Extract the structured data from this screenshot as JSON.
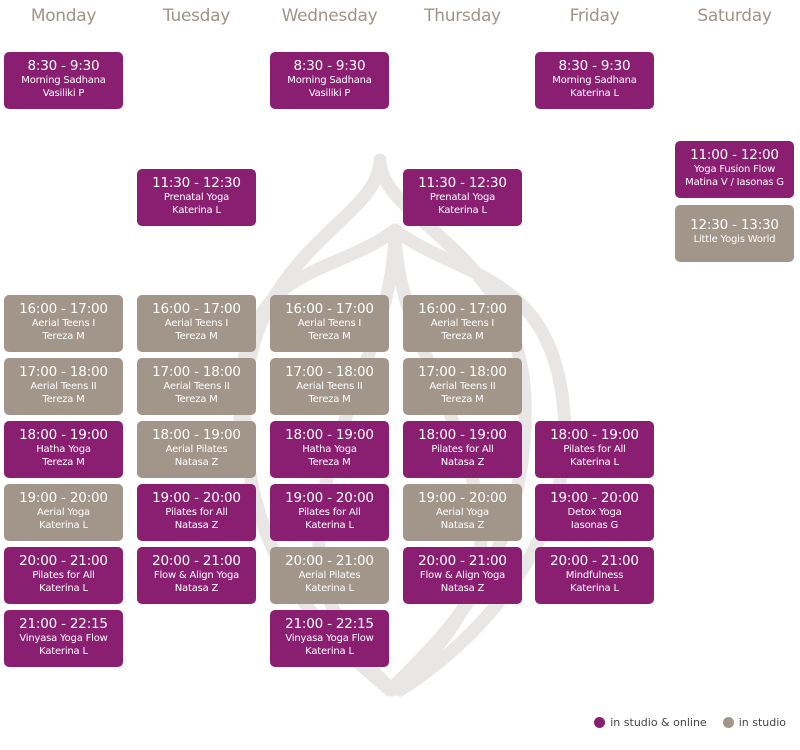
{
  "colors": {
    "online": "#8a1f72",
    "studio": "#a29589",
    "header": "#a09488"
  },
  "days": [
    "Monday",
    "Tuesday",
    "Wednesday",
    "Thursday",
    "Friday",
    "Saturday"
  ],
  "classes": [
    {
      "day": 0,
      "time": "8:30 - 9:30",
      "name": "Morning Sadhana",
      "instructor": "Vasiliki P",
      "type": "online"
    },
    {
      "day": 2,
      "time": "8:30 - 9:30",
      "name": "Morning Sadhana",
      "instructor": "Vasiliki P",
      "type": "online"
    },
    {
      "day": 4,
      "time": "8:30 - 9:30",
      "name": "Morning Sadhana",
      "instructor": "Katerina L",
      "type": "online"
    },
    {
      "day": 5,
      "time": "11:00 - 12:00",
      "name": "Yoga Fusion Flow",
      "instructor": "Matina V / Iasonas G",
      "type": "online"
    },
    {
      "day": 1,
      "time": "11:30 - 12:30",
      "name": "Prenatal Yoga",
      "instructor": "Katerina L",
      "type": "online"
    },
    {
      "day": 3,
      "time": "11:30 - 12:30",
      "name": "Prenatal Yoga",
      "instructor": "Katerina L",
      "type": "online"
    },
    {
      "day": 5,
      "time": "12:30 - 13:30",
      "name": "Little Yogis World",
      "instructor": "",
      "type": "studio"
    },
    {
      "day": 0,
      "time": "16:00 - 17:00",
      "name": "Aerial Teens I",
      "instructor": "Tereza M",
      "type": "studio"
    },
    {
      "day": 1,
      "time": "16:00 - 17:00",
      "name": "Aerial Teens I",
      "instructor": "Tereza M",
      "type": "studio"
    },
    {
      "day": 2,
      "time": "16:00 - 17:00",
      "name": "Aerial Teens I",
      "instructor": "Tereza M",
      "type": "studio"
    },
    {
      "day": 3,
      "time": "16:00 - 17:00",
      "name": "Aerial Teens I",
      "instructor": "Tereza M",
      "type": "studio"
    },
    {
      "day": 0,
      "time": "17:00 - 18:00",
      "name": "Aerial Teens II",
      "instructor": "Tereza M",
      "type": "studio"
    },
    {
      "day": 1,
      "time": "17:00 - 18:00",
      "name": "Aerial Teens II",
      "instructor": "Tereza M",
      "type": "studio"
    },
    {
      "day": 2,
      "time": "17:00 - 18:00",
      "name": "Aerial Teens II",
      "instructor": "Tereza M",
      "type": "studio"
    },
    {
      "day": 3,
      "time": "17:00 - 18:00",
      "name": "Aerial Teens II",
      "instructor": "Tereza M",
      "type": "studio"
    },
    {
      "day": 0,
      "time": "18:00 - 19:00",
      "name": "Hatha Yoga",
      "instructor": "Tereza M",
      "type": "online"
    },
    {
      "day": 1,
      "time": "18:00 - 19:00",
      "name": "Aerial Pilates",
      "instructor": "Natasa Z",
      "type": "studio"
    },
    {
      "day": 2,
      "time": "18:00 - 19:00",
      "name": "Hatha Yoga",
      "instructor": "Tereza M",
      "type": "online"
    },
    {
      "day": 3,
      "time": "18:00 - 19:00",
      "name": "Pilates for All",
      "instructor": "Natasa Z",
      "type": "online"
    },
    {
      "day": 4,
      "time": "18:00 - 19:00",
      "name": "Pilates for All",
      "instructor": "Katerina L",
      "type": "online"
    },
    {
      "day": 0,
      "time": "19:00 - 20:00",
      "name": "Aerial Yoga",
      "instructor": "Katerina L",
      "type": "studio"
    },
    {
      "day": 1,
      "time": "19:00 - 20:00",
      "name": "Pilates for All",
      "instructor": "Natasa Z",
      "type": "online"
    },
    {
      "day": 2,
      "time": "19:00 - 20:00",
      "name": "Pilates for All",
      "instructor": "Katerina L",
      "type": "online"
    },
    {
      "day": 3,
      "time": "19:00 - 20:00",
      "name": "Aerial Yoga",
      "instructor": "Natasa Z",
      "type": "studio"
    },
    {
      "day": 4,
      "time": "19:00 - 20:00",
      "name": "Detox Yoga",
      "instructor": "Iasonas G",
      "type": "online"
    },
    {
      "day": 0,
      "time": "20:00 - 21:00",
      "name": "Pilates for All",
      "instructor": "Katerina L",
      "type": "online"
    },
    {
      "day": 1,
      "time": "20:00 - 21:00",
      "name": "Flow & Align Yoga",
      "instructor": "Natasa Z",
      "type": "online"
    },
    {
      "day": 2,
      "time": "20:00 - 21:00",
      "name": "Aerial Pilates",
      "instructor": "Katerina L",
      "type": "studio"
    },
    {
      "day": 3,
      "time": "20:00 - 21:00",
      "name": "Flow & Align Yoga",
      "instructor": "Natasa Z",
      "type": "online"
    },
    {
      "day": 4,
      "time": "20:00 - 21:00",
      "name": "Mindfulness",
      "instructor": "Katerina L",
      "type": "online"
    },
    {
      "day": 0,
      "time": "21:00 - 22:15",
      "name": "Vinyasa Yoga Flow",
      "instructor": "Katerina L",
      "type": "online"
    },
    {
      "day": 2,
      "time": "21:00 - 22:15",
      "name": "Vinyasa Yoga Flow",
      "instructor": "Katerina L",
      "type": "online"
    }
  ],
  "legend": {
    "online": "in studio & online",
    "studio": "in studio"
  }
}
